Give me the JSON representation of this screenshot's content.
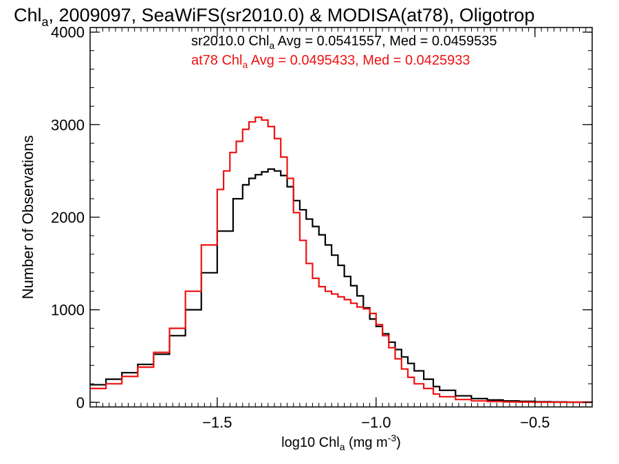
{
  "chart_data": {
    "type": "line",
    "title": "Chl_a, 2009097, SeaWiFS(sr2010.0) & MODISA(at78), Oligotrop",
    "title_parts": {
      "before": "Chl",
      "sub": "a",
      "after": ", 2009097, SeaWiFS(sr2010.0) & MODISA(at78), Oligotrop"
    },
    "xlabel": "log10 Chl_a (mg m^-3)",
    "xlabel_parts": {
      "before": "log10 Chl",
      "sub": "a",
      "middle": " (mg m",
      "sup": "-3",
      "after": ")"
    },
    "ylabel": "Number of Observations",
    "xlim": [
      -1.9,
      -0.32
    ],
    "ylim": [
      -50,
      4050
    ],
    "x_ticks": [
      -1.5,
      -1.0,
      -0.5
    ],
    "x_tick_labels": [
      "−1.5",
      "−1.0",
      "−0.5"
    ],
    "y_ticks": [
      0,
      1000,
      2000,
      3000,
      4000
    ],
    "y_tick_labels": [
      "0",
      "1000",
      "2000",
      "3000",
      "4000"
    ],
    "grid": false,
    "step_style": "histogram",
    "annotations": [
      {
        "before": "sr2010.0 Chl",
        "sub": "a",
        "after": " Avg = 0.0541557, Med = 0.0459535",
        "color": "#000000"
      },
      {
        "before": "at78 Chl",
        "sub": "a",
        "after": " Avg = 0.0495433, Med = 0.0425933",
        "color": "#ee1111"
      }
    ],
    "series": [
      {
        "color": "#000000",
        "x": [
          -1.9,
          -1.85,
          -1.8,
          -1.75,
          -1.7,
          -1.65,
          -1.6,
          -1.55,
          -1.5,
          -1.45,
          -1.42,
          -1.4,
          -1.38,
          -1.36,
          -1.34,
          -1.32,
          -1.3,
          -1.28,
          -1.26,
          -1.24,
          -1.22,
          -1.2,
          -1.18,
          -1.16,
          -1.14,
          -1.12,
          -1.1,
          -1.08,
          -1.06,
          -1.04,
          -1.02,
          -1.0,
          -0.98,
          -0.96,
          -0.94,
          -0.92,
          -0.9,
          -0.88,
          -0.85,
          -0.82,
          -0.8,
          -0.75,
          -0.7,
          -0.65,
          -0.6,
          -0.55,
          -0.5,
          -0.45,
          -0.4,
          -0.32
        ],
        "values": [
          190,
          250,
          320,
          410,
          520,
          720,
          1000,
          1400,
          1850,
          2200,
          2350,
          2420,
          2460,
          2490,
          2520,
          2500,
          2450,
          2330,
          2180,
          2080,
          1980,
          1900,
          1810,
          1700,
          1590,
          1480,
          1360,
          1260,
          1150,
          1020,
          900,
          820,
          740,
          650,
          570,
          490,
          420,
          340,
          250,
          170,
          130,
          70,
          40,
          25,
          15,
          10,
          6,
          4,
          2,
          0
        ]
      },
      {
        "color": "#ee1111",
        "x": [
          -1.9,
          -1.85,
          -1.8,
          -1.75,
          -1.7,
          -1.65,
          -1.6,
          -1.55,
          -1.5,
          -1.48,
          -1.46,
          -1.44,
          -1.42,
          -1.4,
          -1.38,
          -1.36,
          -1.34,
          -1.32,
          -1.3,
          -1.28,
          -1.26,
          -1.24,
          -1.22,
          -1.2,
          -1.18,
          -1.16,
          -1.14,
          -1.12,
          -1.1,
          -1.08,
          -1.06,
          -1.04,
          -1.02,
          -1.0,
          -0.98,
          -0.96,
          -0.94,
          -0.92,
          -0.9,
          -0.88,
          -0.85,
          -0.82,
          -0.8,
          -0.75,
          -0.7,
          -0.65,
          -0.6,
          -0.55,
          -0.5,
          -0.32
        ],
        "values": [
          150,
          200,
          280,
          380,
          540,
          800,
          1200,
          1700,
          2300,
          2500,
          2700,
          2820,
          2950,
          3030,
          3080,
          3050,
          2980,
          2850,
          2650,
          2420,
          2050,
          1750,
          1500,
          1340,
          1250,
          1200,
          1170,
          1140,
          1110,
          1070,
          1030,
          1010,
          960,
          840,
          720,
          590,
          470,
          360,
          270,
          200,
          150,
          90,
          60,
          30,
          15,
          8,
          4,
          2,
          1,
          0
        ]
      }
    ]
  }
}
